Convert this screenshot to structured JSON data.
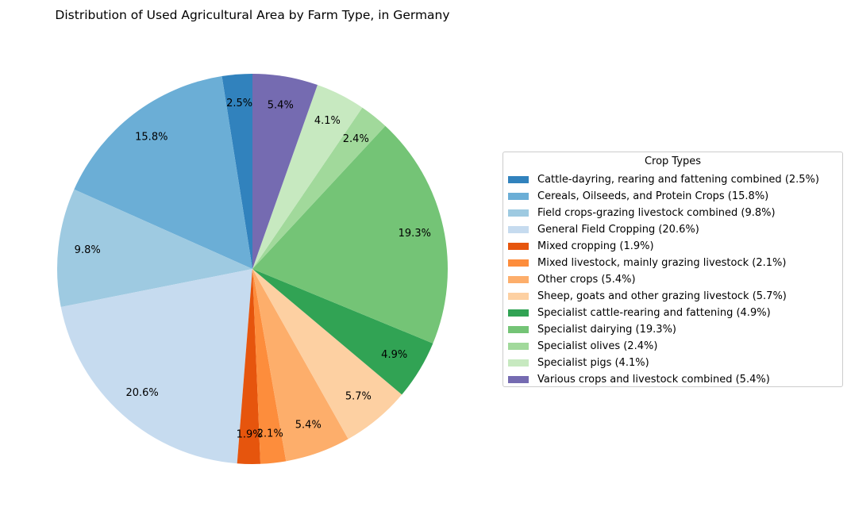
{
  "chart_data": {
    "type": "pie",
    "title": "Distribution of Used Agricultural Area by Farm Type, in Germany",
    "legend_title": "Crop Types",
    "legend_position": "right",
    "start_angle_deg": 90,
    "direction": "counterclockwise",
    "slices": [
      {
        "label": "Cattle-dayring, rearing and fattening combined",
        "value": 2.5,
        "pct_label": "2.5%",
        "legend_label": "Cattle-dayring, rearing and fattening combined (2.5%)",
        "color": "#3182bd"
      },
      {
        "label": "Cereals, Oilseeds, and Protein Crops",
        "value": 15.8,
        "pct_label": "15.8%",
        "legend_label": "Cereals, Oilseeds, and Protein Crops (15.8%)",
        "color": "#6baed6"
      },
      {
        "label": "Field crops-grazing livestock combined",
        "value": 9.8,
        "pct_label": "9.8%",
        "legend_label": "Field crops-grazing livestock combined (9.8%)",
        "color": "#9ecae1"
      },
      {
        "label": "General Field Cropping",
        "value": 20.6,
        "pct_label": "20.6%",
        "legend_label": "General Field Cropping (20.6%)",
        "color": "#c6dbef"
      },
      {
        "label": "Mixed cropping",
        "value": 1.9,
        "pct_label": "1.9%",
        "legend_label": "Mixed cropping (1.9%)",
        "color": "#e6550d"
      },
      {
        "label": "Mixed livestock, mainly grazing livestock",
        "value": 2.1,
        "pct_label": "2.1%",
        "legend_label": "Mixed livestock, mainly grazing livestock (2.1%)",
        "color": "#fd8d3c"
      },
      {
        "label": "Other crops",
        "value": 5.4,
        "pct_label": "5.4%",
        "legend_label": "Other crops (5.4%)",
        "color": "#fdae6b"
      },
      {
        "label": "Sheep, goats and other grazing livestock",
        "value": 5.7,
        "pct_label": "5.7%",
        "legend_label": "Sheep, goats and other grazing livestock (5.7%)",
        "color": "#fdd0a2"
      },
      {
        "label": "Specialist cattle-rearing and fattening",
        "value": 4.9,
        "pct_label": "4.9%",
        "legend_label": "Specialist cattle-rearing and fattening (4.9%)",
        "color": "#31a354"
      },
      {
        "label": "Specialist dairying",
        "value": 19.3,
        "pct_label": "19.3%",
        "legend_label": "Specialist dairying (19.3%)",
        "color": "#74c476"
      },
      {
        "label": "Specialist olives",
        "value": 2.4,
        "pct_label": "2.4%",
        "legend_label": "Specialist olives (2.4%)",
        "color": "#a1d99b"
      },
      {
        "label": "Specialist pigs",
        "value": 4.1,
        "pct_label": "4.1%",
        "legend_label": "Specialist pigs (4.1%)",
        "color": "#c7e9c0"
      },
      {
        "label": "Various crops and livestock combined",
        "value": 5.4,
        "pct_label": "5.4%",
        "legend_label": "Various crops and livestock combined (5.4%)",
        "color": "#756bb1"
      }
    ]
  }
}
